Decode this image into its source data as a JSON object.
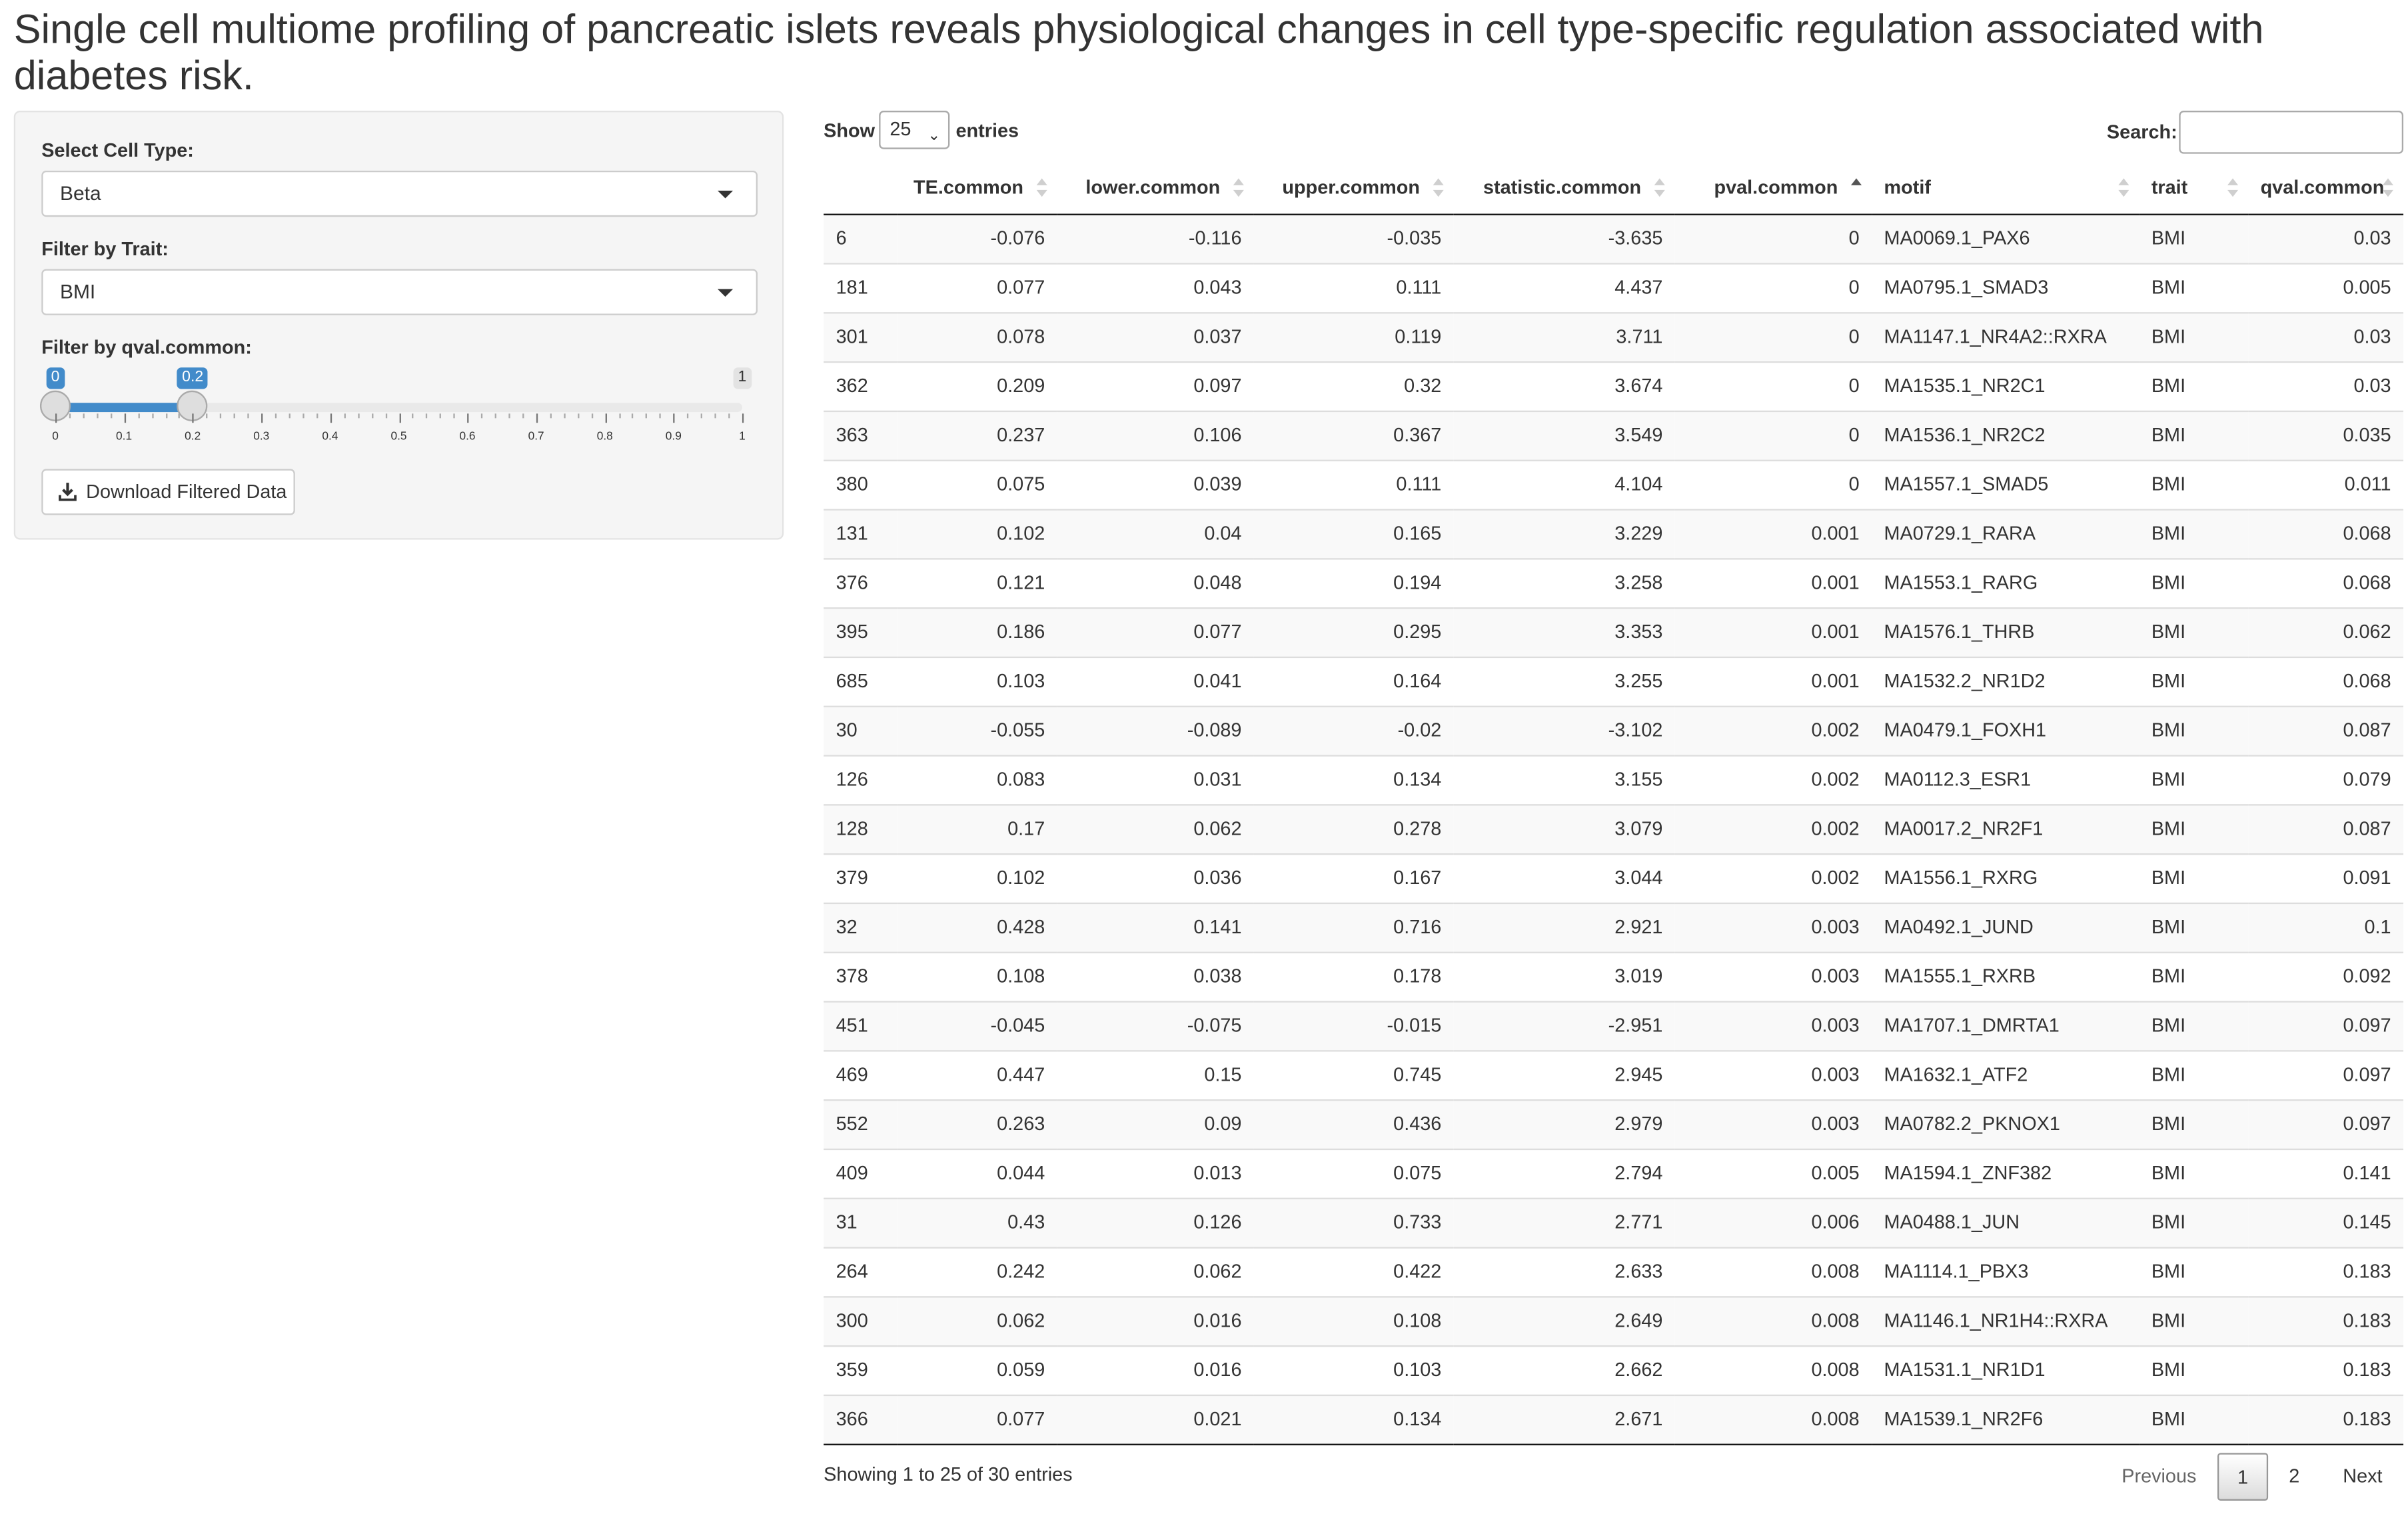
{
  "page": {
    "title": "Single cell multiome profiling of pancreatic islets reveals physiological changes in cell type-specific regulation associated with diabetes risk."
  },
  "sidebar": {
    "cell_type_label": "Select Cell Type:",
    "cell_type_value": "Beta",
    "trait_label": "Filter by Trait:",
    "trait_value": "BMI",
    "qval_label": "Filter by qval.common:",
    "slider": {
      "min": 0,
      "max": 1,
      "from": 0,
      "to": 0.2,
      "from_label": "0",
      "to_label": "0.2",
      "max_label": "1",
      "ticks": [
        "0",
        "0.1",
        "0.2",
        "0.3",
        "0.4",
        "0.5",
        "0.6",
        "0.7",
        "0.8",
        "0.9",
        "1"
      ]
    },
    "download_label": "Download Filtered Data",
    "download_icon": "download-icon"
  },
  "table_controls": {
    "show_label": "Show",
    "page_length": "25",
    "entries_label": "entries",
    "search_label": "Search:",
    "search_value": ""
  },
  "table": {
    "columns": [
      "",
      "TE.common",
      "lower.common",
      "upper.common",
      "statistic.common",
      "pval.common",
      "motif",
      "trait",
      "qval.common"
    ],
    "sorted_column": "pval.common",
    "sort_direction": "ascending",
    "rows": [
      [
        "6",
        "-0.076",
        "-0.116",
        "-0.035",
        "-3.635",
        "0",
        "MA0069.1_PAX6",
        "BMI",
        "0.03"
      ],
      [
        "181",
        "0.077",
        "0.043",
        "0.111",
        "4.437",
        "0",
        "MA0795.1_SMAD3",
        "BMI",
        "0.005"
      ],
      [
        "301",
        "0.078",
        "0.037",
        "0.119",
        "3.711",
        "0",
        "MA1147.1_NR4A2::RXRA",
        "BMI",
        "0.03"
      ],
      [
        "362",
        "0.209",
        "0.097",
        "0.32",
        "3.674",
        "0",
        "MA1535.1_NR2C1",
        "BMI",
        "0.03"
      ],
      [
        "363",
        "0.237",
        "0.106",
        "0.367",
        "3.549",
        "0",
        "MA1536.1_NR2C2",
        "BMI",
        "0.035"
      ],
      [
        "380",
        "0.075",
        "0.039",
        "0.111",
        "4.104",
        "0",
        "MA1557.1_SMAD5",
        "BMI",
        "0.011"
      ],
      [
        "131",
        "0.102",
        "0.04",
        "0.165",
        "3.229",
        "0.001",
        "MA0729.1_RARA",
        "BMI",
        "0.068"
      ],
      [
        "376",
        "0.121",
        "0.048",
        "0.194",
        "3.258",
        "0.001",
        "MA1553.1_RARG",
        "BMI",
        "0.068"
      ],
      [
        "395",
        "0.186",
        "0.077",
        "0.295",
        "3.353",
        "0.001",
        "MA1576.1_THRB",
        "BMI",
        "0.062"
      ],
      [
        "685",
        "0.103",
        "0.041",
        "0.164",
        "3.255",
        "0.001",
        "MA1532.2_NR1D2",
        "BMI",
        "0.068"
      ],
      [
        "30",
        "-0.055",
        "-0.089",
        "-0.02",
        "-3.102",
        "0.002",
        "MA0479.1_FOXH1",
        "BMI",
        "0.087"
      ],
      [
        "126",
        "0.083",
        "0.031",
        "0.134",
        "3.155",
        "0.002",
        "MA0112.3_ESR1",
        "BMI",
        "0.079"
      ],
      [
        "128",
        "0.17",
        "0.062",
        "0.278",
        "3.079",
        "0.002",
        "MA0017.2_NR2F1",
        "BMI",
        "0.087"
      ],
      [
        "379",
        "0.102",
        "0.036",
        "0.167",
        "3.044",
        "0.002",
        "MA1556.1_RXRG",
        "BMI",
        "0.091"
      ],
      [
        "32",
        "0.428",
        "0.141",
        "0.716",
        "2.921",
        "0.003",
        "MA0492.1_JUND",
        "BMI",
        "0.1"
      ],
      [
        "378",
        "0.108",
        "0.038",
        "0.178",
        "3.019",
        "0.003",
        "MA1555.1_RXRB",
        "BMI",
        "0.092"
      ],
      [
        "451",
        "-0.045",
        "-0.075",
        "-0.015",
        "-2.951",
        "0.003",
        "MA1707.1_DMRTA1",
        "BMI",
        "0.097"
      ],
      [
        "469",
        "0.447",
        "0.15",
        "0.745",
        "2.945",
        "0.003",
        "MA1632.1_ATF2",
        "BMI",
        "0.097"
      ],
      [
        "552",
        "0.263",
        "0.09",
        "0.436",
        "2.979",
        "0.003",
        "MA0782.2_PKNOX1",
        "BMI",
        "0.097"
      ],
      [
        "409",
        "0.044",
        "0.013",
        "0.075",
        "2.794",
        "0.005",
        "MA1594.1_ZNF382",
        "BMI",
        "0.141"
      ],
      [
        "31",
        "0.43",
        "0.126",
        "0.733",
        "2.771",
        "0.006",
        "MA0488.1_JUN",
        "BMI",
        "0.145"
      ],
      [
        "264",
        "0.242",
        "0.062",
        "0.422",
        "2.633",
        "0.008",
        "MA1114.1_PBX3",
        "BMI",
        "0.183"
      ],
      [
        "300",
        "0.062",
        "0.016",
        "0.108",
        "2.649",
        "0.008",
        "MA1146.1_NR1H4::RXRA",
        "BMI",
        "0.183"
      ],
      [
        "359",
        "0.059",
        "0.016",
        "0.103",
        "2.662",
        "0.008",
        "MA1531.1_NR1D1",
        "BMI",
        "0.183"
      ],
      [
        "366",
        "0.077",
        "0.021",
        "0.134",
        "2.671",
        "0.008",
        "MA1539.1_NR2F6",
        "BMI",
        "0.183"
      ]
    ]
  },
  "footer": {
    "info": "Showing 1 to 25 of 30 entries",
    "previous_label": "Previous",
    "pages": [
      "1",
      "2"
    ],
    "current_page": "1",
    "next_label": "Next"
  },
  "colors": {
    "accent": "#428bca",
    "stripe": "#f9f9f9",
    "panel": "#f5f5f5"
  }
}
